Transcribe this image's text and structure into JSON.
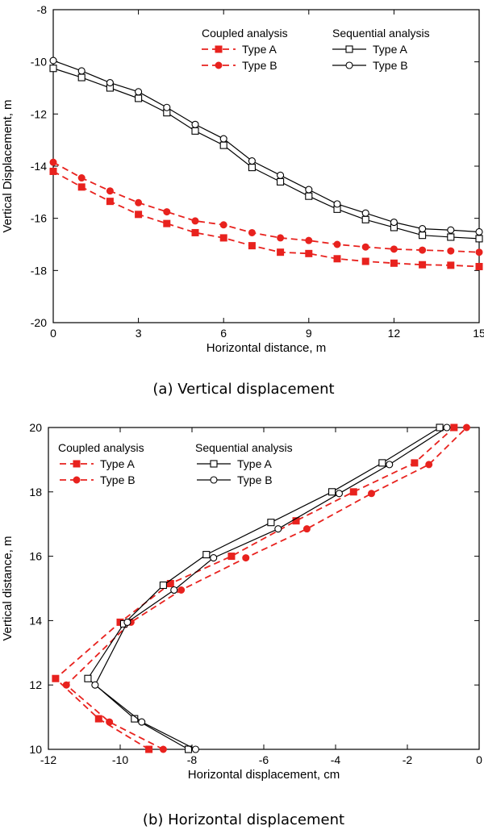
{
  "chart_data": [
    {
      "type": "line",
      "caption": "(a) Vertical displacement",
      "xlabel": "Horizontal distance, m",
      "ylabel": "Vertical Displacement, m",
      "xlim": [
        0,
        15
      ],
      "ylim": [
        -20,
        -8
      ],
      "xticks": [
        0,
        3,
        6,
        9,
        12,
        15
      ],
      "yticks": [
        -8,
        -10,
        -12,
        -14,
        -16,
        -18,
        -20
      ],
      "grid": false,
      "legend_position": "top-right",
      "legend_groups": [
        "Coupled analysis",
        "Sequential analysis"
      ],
      "series": [
        {
          "name": "Type A",
          "group": "Coupled analysis",
          "color": "#e8221e",
          "style": "dashed",
          "marker": "square-filled",
          "x": [
            0,
            1,
            2,
            3,
            4,
            5,
            6,
            7,
            8,
            9,
            10,
            11,
            12,
            13,
            14,
            15
          ],
          "y": [
            -14.2,
            -14.8,
            -15.35,
            -15.85,
            -16.2,
            -16.55,
            -16.75,
            -17.05,
            -17.3,
            -17.35,
            -17.55,
            -17.65,
            -17.72,
            -17.78,
            -17.8,
            -17.85
          ]
        },
        {
          "name": "Type B",
          "group": "Coupled analysis",
          "color": "#e8221e",
          "style": "dashed",
          "marker": "circle-filled",
          "x": [
            0,
            1,
            2,
            3,
            4,
            5,
            6,
            7,
            8,
            9,
            10,
            11,
            12,
            13,
            14,
            15
          ],
          "y": [
            -13.85,
            -14.45,
            -14.95,
            -15.4,
            -15.75,
            -16.1,
            -16.25,
            -16.55,
            -16.75,
            -16.85,
            -17.0,
            -17.1,
            -17.18,
            -17.22,
            -17.25,
            -17.3
          ]
        },
        {
          "name": "Type A",
          "group": "Sequential analysis",
          "color": "#000000",
          "style": "solid",
          "marker": "square-open",
          "x": [
            0,
            1,
            2,
            3,
            4,
            5,
            6,
            7,
            8,
            9,
            10,
            11,
            12,
            13,
            14,
            15
          ],
          "y": [
            -10.25,
            -10.6,
            -11.0,
            -11.4,
            -11.95,
            -12.65,
            -13.2,
            -14.05,
            -14.6,
            -15.15,
            -15.65,
            -16.05,
            -16.35,
            -16.65,
            -16.72,
            -16.78
          ]
        },
        {
          "name": "Type B",
          "group": "Sequential analysis",
          "color": "#000000",
          "style": "solid",
          "marker": "circle-open",
          "x": [
            0,
            1,
            2,
            3,
            4,
            5,
            6,
            7,
            8,
            9,
            10,
            11,
            12,
            13,
            14,
            15
          ],
          "y": [
            -9.95,
            -10.35,
            -10.8,
            -11.15,
            -11.75,
            -12.4,
            -12.95,
            -13.8,
            -14.35,
            -14.9,
            -15.45,
            -15.8,
            -16.15,
            -16.4,
            -16.45,
            -16.52
          ]
        }
      ]
    },
    {
      "type": "line",
      "caption": "(b) Horizontal displacement",
      "xlabel": "Horizontal displacement, cm",
      "ylabel": "Vertical distance, m",
      "xlim": [
        -12,
        0
      ],
      "ylim": [
        10,
        20
      ],
      "xticks": [
        -12,
        -10,
        -8,
        -6,
        -4,
        -2,
        0
      ],
      "yticks": [
        10,
        12,
        14,
        16,
        18,
        20
      ],
      "grid": false,
      "legend_position": "top-left",
      "legend_groups": [
        "Coupled analysis",
        "Sequential analysis"
      ],
      "series": [
        {
          "name": "Type A",
          "group": "Coupled analysis",
          "color": "#e8221e",
          "style": "dashed",
          "marker": "square-filled",
          "x": [
            -9.2,
            -10.6,
            -11.8,
            -10.0,
            -8.6,
            -6.9,
            -5.1,
            -3.5,
            -1.8,
            -0.7
          ],
          "y": [
            10.0,
            10.95,
            12.2,
            13.95,
            15.15,
            16.0,
            17.1,
            18.0,
            18.9,
            20.0
          ]
        },
        {
          "name": "Type B",
          "group": "Coupled analysis",
          "color": "#e8221e",
          "style": "dashed",
          "marker": "circle-filled",
          "x": [
            -8.8,
            -10.3,
            -11.5,
            -9.7,
            -8.3,
            -6.5,
            -4.8,
            -3.0,
            -1.4,
            -0.35
          ],
          "y": [
            10.0,
            10.85,
            12.0,
            13.95,
            14.95,
            15.95,
            16.85,
            17.95,
            18.85,
            20.0
          ]
        },
        {
          "name": "Type A",
          "group": "Sequential analysis",
          "color": "#000000",
          "style": "solid",
          "marker": "square-open",
          "x": [
            -8.1,
            -9.6,
            -10.9,
            -9.9,
            -8.8,
            -7.6,
            -5.8,
            -4.1,
            -2.7,
            -1.1
          ],
          "y": [
            10.0,
            10.95,
            12.2,
            13.9,
            15.1,
            16.05,
            17.05,
            18.0,
            18.9,
            20.0
          ]
        },
        {
          "name": "Type B",
          "group": "Sequential analysis",
          "color": "#000000",
          "style": "solid",
          "marker": "circle-open",
          "x": [
            -7.9,
            -9.4,
            -10.7,
            -9.8,
            -8.5,
            -7.4,
            -5.6,
            -3.9,
            -2.5,
            -0.9
          ],
          "y": [
            10.0,
            10.85,
            12.0,
            13.95,
            14.95,
            15.95,
            16.85,
            17.95,
            18.85,
            20.0
          ]
        }
      ]
    }
  ]
}
